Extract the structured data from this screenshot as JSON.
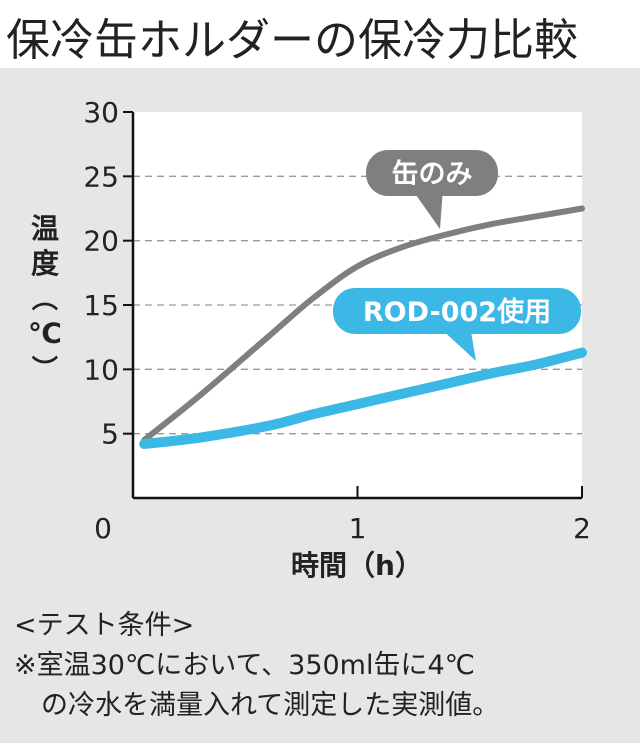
{
  "title": "保冷缶ホルダーの保冷力比較",
  "chart_data": {
    "type": "line",
    "ylabel": "温度（℃）",
    "xlabel": "時間（h）",
    "x_ticks": [
      "0",
      "1",
      "2"
    ],
    "y_ticks": [
      "5",
      "10",
      "15",
      "20",
      "25",
      "30"
    ],
    "ylim": [
      0,
      30
    ],
    "xlim": [
      0,
      2
    ],
    "grid": "horizontal-dashed",
    "series": [
      {
        "name": "缶のみ",
        "color": "#7f7f7f",
        "x": [
          0.05,
          0.3,
          0.6,
          0.8,
          1.0,
          1.2,
          1.4,
          1.6,
          1.8,
          2.0
        ],
        "y": [
          4.5,
          8.0,
          12.5,
          15.5,
          18.0,
          19.5,
          20.5,
          21.3,
          21.9,
          22.5
        ]
      },
      {
        "name": "ROD-002使用",
        "color": "#3cb8e6",
        "x": [
          0.05,
          0.3,
          0.6,
          0.8,
          1.0,
          1.2,
          1.4,
          1.6,
          1.8,
          2.0
        ],
        "y": [
          4.2,
          4.7,
          5.6,
          6.5,
          7.3,
          8.1,
          8.9,
          9.7,
          10.4,
          11.3
        ]
      }
    ]
  },
  "note": {
    "heading": "<テスト条件>",
    "line1": "※室温30℃において、350ml缶に4℃",
    "line2": "　の冷水を満量入れて測定した実測値。"
  }
}
